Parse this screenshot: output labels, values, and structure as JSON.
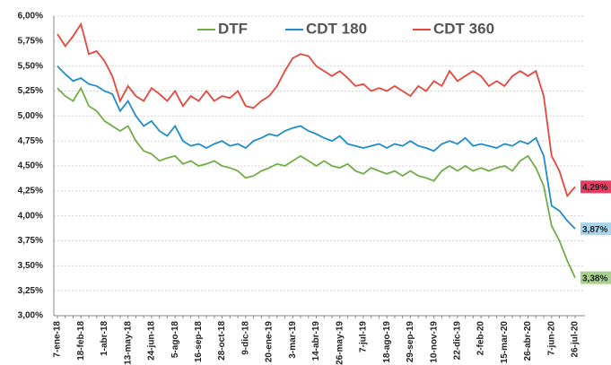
{
  "chart_data": {
    "type": "line",
    "categories": [
      "7-ene-18",
      null,
      null,
      "18-feb-18",
      null,
      null,
      "1-abr-18",
      null,
      null,
      "13-may-18",
      null,
      null,
      "24-jun-18",
      null,
      null,
      "5-ago-18",
      null,
      null,
      "16-sep-18",
      null,
      null,
      "28-oct-18",
      null,
      null,
      "9-dic-18",
      null,
      null,
      "20-ene-19",
      null,
      null,
      "3-mar-19",
      null,
      null,
      "14-abr-19",
      null,
      null,
      "26-may-19",
      null,
      null,
      "7-jul-19",
      null,
      null,
      "18-ago-19",
      null,
      null,
      "29-sep-19",
      null,
      null,
      "10-nov-19",
      null,
      null,
      "22-dic-19",
      null,
      null,
      "2-feb-20",
      null,
      null,
      "15-mar-20",
      null,
      null,
      "26-abr-20",
      null,
      null,
      "7-jun-20",
      null,
      null,
      "26-jul-20"
    ],
    "series": [
      {
        "name": "DTF",
        "color": "#70ad47",
        "label_color": "#a9d18e",
        "values": [
          5.28,
          5.2,
          5.15,
          5.28,
          5.1,
          5.05,
          4.95,
          4.9,
          4.85,
          4.9,
          4.75,
          4.65,
          4.62,
          4.55,
          4.58,
          4.6,
          4.52,
          4.55,
          4.5,
          4.52,
          4.55,
          4.5,
          4.48,
          4.45,
          4.38,
          4.4,
          4.45,
          4.48,
          4.52,
          4.5,
          4.55,
          4.6,
          4.55,
          4.5,
          4.55,
          4.5,
          4.48,
          4.52,
          4.45,
          4.42,
          4.48,
          4.45,
          4.42,
          4.45,
          4.4,
          4.45,
          4.4,
          4.38,
          4.35,
          4.45,
          4.5,
          4.45,
          4.5,
          4.45,
          4.48,
          4.45,
          4.48,
          4.5,
          4.45,
          4.55,
          4.6,
          4.48,
          4.3,
          3.9,
          3.75,
          3.55,
          3.38
        ],
        "value_labels": [
          null,
          null,
          null,
          null,
          null,
          null,
          null,
          null,
          null,
          null,
          null,
          null,
          null,
          null,
          null,
          null,
          null,
          null,
          null,
          null,
          null,
          null,
          null,
          null,
          null,
          null,
          null,
          null,
          null,
          null,
          null,
          null,
          null,
          null,
          null,
          null,
          null,
          null,
          null,
          null,
          null,
          null,
          null,
          null,
          null,
          null,
          null,
          null,
          null,
          null,
          null,
          null,
          null,
          null,
          null,
          null,
          null,
          null,
          null,
          null,
          null,
          null,
          null,
          null,
          null,
          null,
          "3,38%"
        ]
      },
      {
        "name": "CDT 180",
        "color": "#1f8ccc",
        "label_color": "#a6d6ee",
        "values": [
          5.5,
          5.42,
          5.35,
          5.38,
          5.32,
          5.3,
          5.25,
          5.22,
          5.05,
          5.15,
          5.0,
          4.9,
          4.95,
          4.85,
          4.8,
          4.9,
          4.75,
          4.7,
          4.72,
          4.68,
          4.72,
          4.75,
          4.7,
          4.72,
          4.68,
          4.75,
          4.78,
          4.82,
          4.8,
          4.85,
          4.88,
          4.9,
          4.85,
          4.82,
          4.78,
          4.75,
          4.8,
          4.72,
          4.7,
          4.68,
          4.7,
          4.72,
          4.68,
          4.72,
          4.7,
          4.75,
          4.7,
          4.68,
          4.65,
          4.72,
          4.75,
          4.72,
          4.78,
          4.7,
          4.72,
          4.7,
          4.68,
          4.72,
          4.7,
          4.75,
          4.72,
          4.78,
          4.6,
          4.1,
          4.05,
          3.95,
          3.87
        ],
        "value_labels": [
          null,
          null,
          null,
          null,
          null,
          null,
          null,
          null,
          null,
          null,
          null,
          null,
          null,
          null,
          null,
          null,
          null,
          null,
          null,
          null,
          null,
          null,
          null,
          null,
          null,
          null,
          null,
          null,
          null,
          null,
          null,
          null,
          null,
          null,
          null,
          null,
          null,
          null,
          null,
          null,
          null,
          null,
          null,
          null,
          null,
          null,
          null,
          null,
          null,
          null,
          null,
          null,
          null,
          null,
          null,
          null,
          null,
          null,
          null,
          null,
          null,
          null,
          null,
          null,
          null,
          null,
          "3,87%"
        ]
      },
      {
        "name": "CDT 360",
        "color": "#e8453c",
        "label_color": "#e54062",
        "values": [
          5.82,
          5.7,
          5.8,
          5.92,
          5.62,
          5.65,
          5.55,
          5.4,
          5.15,
          5.3,
          5.2,
          5.15,
          5.28,
          5.22,
          5.15,
          5.25,
          5.1,
          5.2,
          5.15,
          5.25,
          5.15,
          5.2,
          5.18,
          5.25,
          5.1,
          5.08,
          5.15,
          5.2,
          5.3,
          5.45,
          5.58,
          5.62,
          5.6,
          5.5,
          5.45,
          5.4,
          5.45,
          5.38,
          5.3,
          5.32,
          5.25,
          5.28,
          5.25,
          5.3,
          5.25,
          5.2,
          5.3,
          5.25,
          5.35,
          5.3,
          5.45,
          5.35,
          5.4,
          5.45,
          5.4,
          5.3,
          5.35,
          5.3,
          5.4,
          5.45,
          5.4,
          5.45,
          5.2,
          4.6,
          4.45,
          4.2,
          4.29
        ],
        "value_labels": [
          null,
          null,
          null,
          null,
          null,
          null,
          null,
          null,
          null,
          null,
          null,
          null,
          null,
          null,
          null,
          null,
          null,
          null,
          null,
          null,
          null,
          null,
          null,
          null,
          null,
          null,
          null,
          null,
          null,
          null,
          null,
          null,
          null,
          null,
          null,
          null,
          null,
          null,
          null,
          null,
          null,
          null,
          null,
          null,
          null,
          null,
          null,
          null,
          null,
          null,
          null,
          null,
          null,
          null,
          null,
          null,
          null,
          null,
          null,
          null,
          null,
          null,
          null,
          null,
          null,
          null,
          "4,29%"
        ]
      }
    ],
    "ylim": [
      3,
      6
    ],
    "yticks": [
      {
        "value": 3,
        "label": "3,00%"
      },
      {
        "value": 3.25,
        "label": "3,25%"
      },
      {
        "value": 3.5,
        "label": "3,50%"
      },
      {
        "value": 3.75,
        "label": "3,75%"
      },
      {
        "value": 4,
        "label": "4,00%"
      },
      {
        "value": 4.25,
        "label": "4,25%"
      },
      {
        "value": 4.5,
        "label": "4,50%"
      },
      {
        "value": 4.75,
        "label": "4,75%"
      },
      {
        "value": 5,
        "label": "5,00%"
      },
      {
        "value": 5.25,
        "label": "5,25%"
      },
      {
        "value": 5.5,
        "label": "5,50%"
      },
      {
        "value": 5.75,
        "label": "5,75%"
      },
      {
        "value": 6,
        "label": "6,00%"
      }
    ],
    "grid": true,
    "legend": "top"
  }
}
